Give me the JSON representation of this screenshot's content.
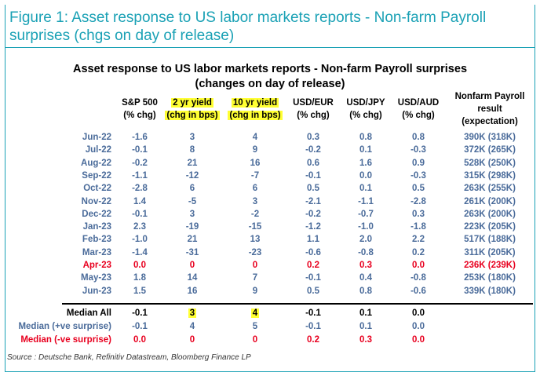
{
  "figure_title": "Figure 1: Asset response to US labor markets reports - Non-farm Payroll surprises (chgs on day of release)",
  "table_title_line1": "Asset response to US labor markets reports - Non-farm Payroll surprises",
  "table_title_line2": "(changes on day of release)",
  "columns": [
    {
      "line1": "S&P 500",
      "line2": "(% chg)",
      "line3": ""
    },
    {
      "line1": "2 yr yield",
      "line2": "(chg in bps)",
      "line3": ""
    },
    {
      "line1": "10 yr yield",
      "line2": "(chg in bps)",
      "line3": ""
    },
    {
      "line1": "USD/EUR",
      "line2": "(% chg)",
      "line3": ""
    },
    {
      "line1": "USD/JPY",
      "line2": "(% chg)",
      "line3": ""
    },
    {
      "line1": "USD/AUD",
      "line2": "(% chg)",
      "line3": ""
    },
    {
      "line1": "Nonfarm Payroll",
      "line2": "result",
      "line3": "(expectation)"
    }
  ],
  "rows": [
    {
      "label": "Jun-22",
      "values": [
        "-1.6",
        "3",
        "4",
        "0.3",
        "0.8",
        "0.8",
        "390K (318K)"
      ]
    },
    {
      "label": "Jul-22",
      "values": [
        "-0.1",
        "8",
        "9",
        "-0.2",
        "0.1",
        "-0.3",
        "372K (265K)"
      ]
    },
    {
      "label": "Aug-22",
      "values": [
        "-0.2",
        "21",
        "16",
        "0.6",
        "1.6",
        "0.9",
        "528K (250K)"
      ]
    },
    {
      "label": "Sep-22",
      "values": [
        "-1.1",
        "-12",
        "-7",
        "-0.1",
        "0.0",
        "-0.3",
        "315K (298K)"
      ]
    },
    {
      "label": "Oct-22",
      "values": [
        "-2.8",
        "6",
        "6",
        "0.5",
        "0.1",
        "0.5",
        "263K (255K)"
      ]
    },
    {
      "label": "Nov-22",
      "values": [
        "1.4",
        "-5",
        "3",
        "-2.1",
        "-1.1",
        "-2.8",
        "261K (200K)"
      ]
    },
    {
      "label": "Dec-22",
      "values": [
        "-0.1",
        "3",
        "-2",
        "-0.2",
        "-0.7",
        "0.3",
        "263K (200K)"
      ]
    },
    {
      "label": "Jan-23",
      "values": [
        "2.3",
        "-19",
        "-15",
        "-1.2",
        "-1.0",
        "-1.8",
        "223K (205K)"
      ]
    },
    {
      "label": "Feb-23",
      "values": [
        "-1.0",
        "21",
        "13",
        "1.1",
        "2.0",
        "2.2",
        "517K (188K)"
      ]
    },
    {
      "label": "Mar-23",
      "values": [
        "-1.4",
        "-31",
        "-23",
        "-0.6",
        "-0.8",
        "0.2",
        "311K (205K)"
      ]
    },
    {
      "label": "Apr-23",
      "values": [
        "0.0",
        "0",
        "0",
        "0.2",
        "0.3",
        "0.0",
        "236K (239K)"
      ]
    },
    {
      "label": "May-23",
      "values": [
        "1.8",
        "14",
        "7",
        "-0.1",
        "0.4",
        "-0.8",
        "253K (180K)"
      ]
    },
    {
      "label": "Jun-23",
      "values": [
        "1.5",
        "16",
        "9",
        "0.5",
        "0.8",
        "-0.6",
        "339K (180K)"
      ]
    }
  ],
  "summary": [
    {
      "label": "Median All",
      "values": [
        "-0.1",
        "3",
        "4",
        "-0.1",
        "0.1",
        "0.0"
      ]
    },
    {
      "label": "Median (+ve surprise)",
      "values": [
        "-0.1",
        "4",
        "5",
        "-0.1",
        "0.1",
        "0.0"
      ]
    },
    {
      "label": "Median (-ve surprise)",
      "values": [
        "0.0",
        "0",
        "0",
        "0.2",
        "0.3",
        "0.0"
      ]
    }
  ],
  "source": "Source : Deutsche Bank, Refinitiv Datastream, Bloomberg Finance LP",
  "colors": {
    "accent": "#1aa1b5",
    "value_blue": "#4a6b9a",
    "negative_surprise_red": "#e8001f",
    "highlight": "#ffff33"
  }
}
